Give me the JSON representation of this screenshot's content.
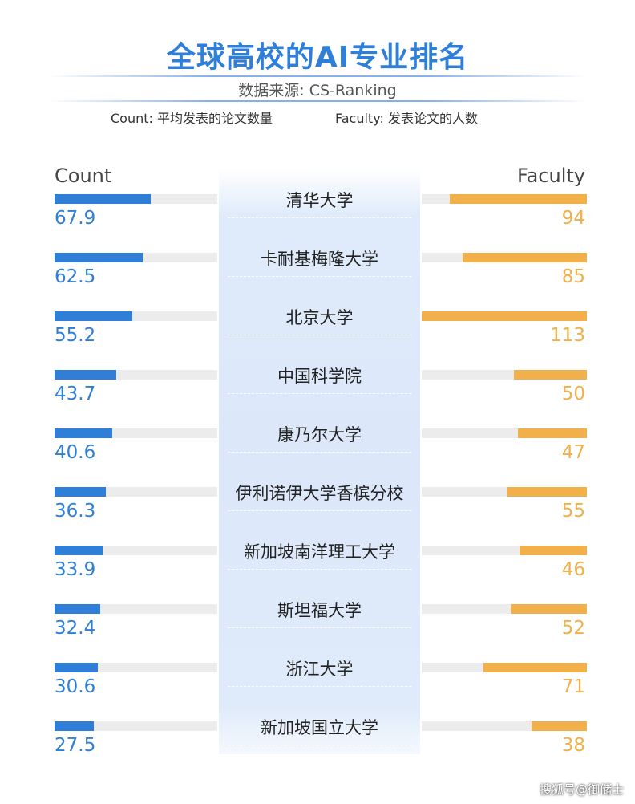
{
  "header": {
    "title": "全球高校的AI专业排名",
    "subtitle": "数据来源: CS-Ranking",
    "count_note": "Count: 平均发表的论文数量",
    "faculty_note": "Faculty: 发表论文的人数"
  },
  "colors": {
    "count": "#2f7ed8",
    "faculty": "#f2b04a",
    "title": "#2f7ed8"
  },
  "chart_data": {
    "type": "bar",
    "orientation": "horizontal-diverging",
    "categories": [
      "清华大学",
      "卡耐基梅隆大学",
      "北京大学",
      "中国科学院",
      "康乃尔大学",
      "伊利诺伊大学香槟分校",
      "新加坡南洋理工大学",
      "斯坦福大学",
      "浙江大学",
      "新加坡国立大学"
    ],
    "series": [
      {
        "name": "Count",
        "values": [
          67.9,
          62.5,
          55.2,
          43.7,
          40.6,
          36.3,
          33.9,
          32.4,
          30.6,
          27.5
        ]
      },
      {
        "name": "Faculty",
        "values": [
          94,
          85,
          113,
          50,
          47,
          55,
          46,
          52,
          71,
          38
        ]
      }
    ],
    "count_max": 115,
    "faculty_max": 113,
    "legend": "left-header / right-header"
  },
  "watermark": "搜狐号@御储士"
}
